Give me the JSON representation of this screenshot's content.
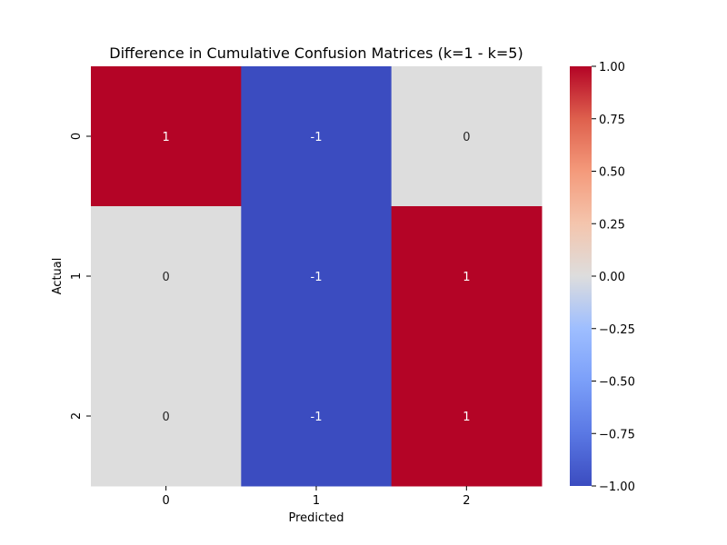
{
  "chart_data": {
    "type": "heatmap",
    "title": "Difference in Cumulative Confusion Matrices (k=1 - k=5)",
    "xlabel": "Predicted",
    "ylabel": "Actual",
    "x_categories": [
      "0",
      "1",
      "2"
    ],
    "y_categories": [
      "0",
      "1",
      "2"
    ],
    "values": [
      [
        1,
        -1,
        0
      ],
      [
        0,
        -1,
        1
      ],
      [
        0,
        -1,
        1
      ]
    ],
    "annotations": [
      [
        "1",
        "-1",
        "0"
      ],
      [
        "0",
        "-1",
        "1"
      ],
      [
        "0",
        "-1",
        "1"
      ]
    ],
    "colormap": "coolwarm",
    "colorbar": {
      "range": [
        -1.0,
        1.0
      ],
      "ticks": [
        1.0,
        0.75,
        0.5,
        0.25,
        0.0,
        -0.25,
        -0.5,
        -0.75,
        -1.0
      ],
      "tick_labels": [
        "1.00",
        "0.75",
        "0.50",
        "0.25",
        "0.00",
        "−0.25",
        "−0.50",
        "−0.75",
        "−1.00"
      ]
    },
    "colors": {
      "positive": "#b40426",
      "zero": "#dddddd",
      "negative": "#3b4cc0"
    }
  }
}
